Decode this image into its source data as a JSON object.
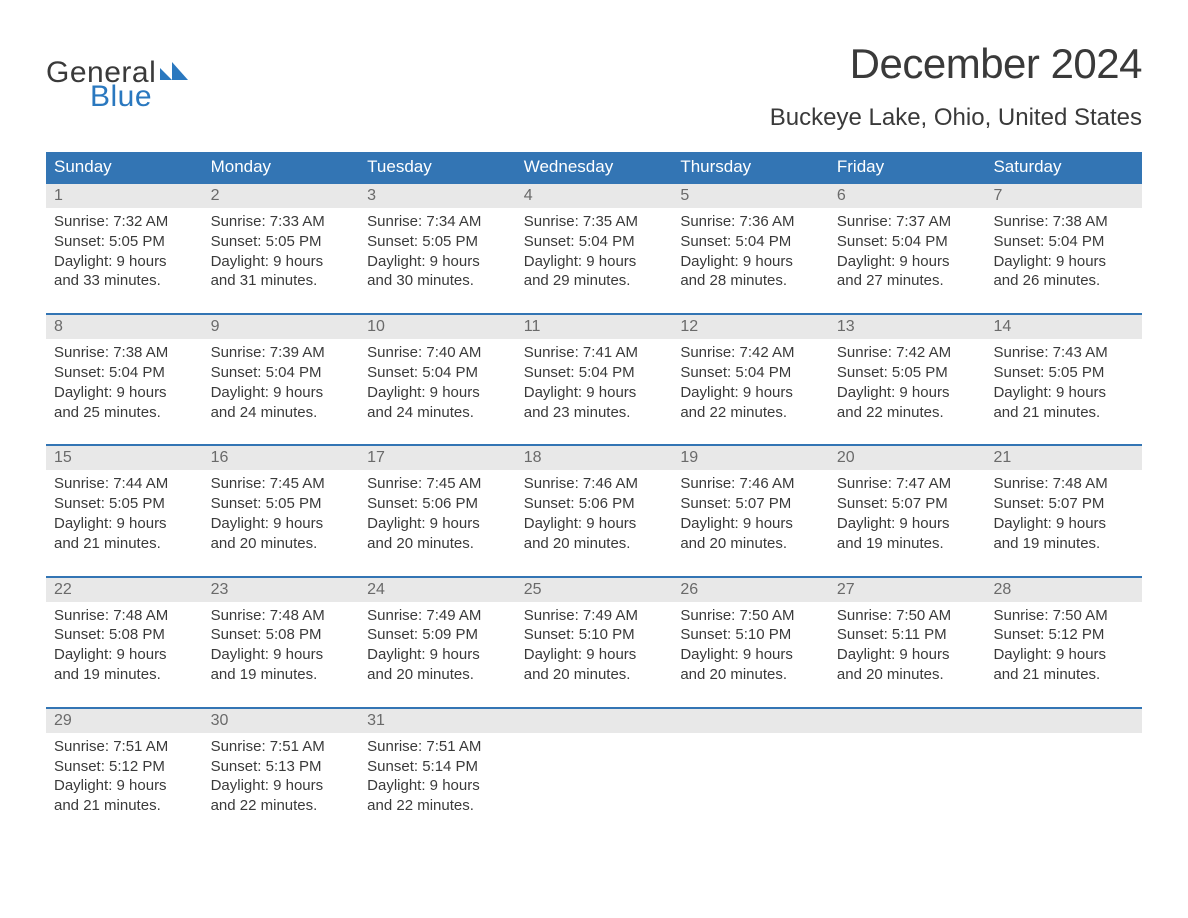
{
  "colors": {
    "brand_blue": "#2a78bf",
    "header_blue": "#3375b4",
    "week_border": "#3375b4",
    "day_num_bg": "#e8e8e8",
    "day_num_text": "#6a6a6a",
    "body_text": "#3a3a3a",
    "background": "#ffffff"
  },
  "logo": {
    "word1": "General",
    "word2": "Blue"
  },
  "title": "December 2024",
  "subtitle": "Buckeye Lake, Ohio, United States",
  "day_names": [
    "Sunday",
    "Monday",
    "Tuesday",
    "Wednesday",
    "Thursday",
    "Friday",
    "Saturday"
  ],
  "weeks": [
    [
      {
        "num": "1",
        "sunrise": "Sunrise: 7:32 AM",
        "sunset": "Sunset: 5:05 PM",
        "day1": "Daylight: 9 hours",
        "day2": "and 33 minutes."
      },
      {
        "num": "2",
        "sunrise": "Sunrise: 7:33 AM",
        "sunset": "Sunset: 5:05 PM",
        "day1": "Daylight: 9 hours",
        "day2": "and 31 minutes."
      },
      {
        "num": "3",
        "sunrise": "Sunrise: 7:34 AM",
        "sunset": "Sunset: 5:05 PM",
        "day1": "Daylight: 9 hours",
        "day2": "and 30 minutes."
      },
      {
        "num": "4",
        "sunrise": "Sunrise: 7:35 AM",
        "sunset": "Sunset: 5:04 PM",
        "day1": "Daylight: 9 hours",
        "day2": "and 29 minutes."
      },
      {
        "num": "5",
        "sunrise": "Sunrise: 7:36 AM",
        "sunset": "Sunset: 5:04 PM",
        "day1": "Daylight: 9 hours",
        "day2": "and 28 minutes."
      },
      {
        "num": "6",
        "sunrise": "Sunrise: 7:37 AM",
        "sunset": "Sunset: 5:04 PM",
        "day1": "Daylight: 9 hours",
        "day2": "and 27 minutes."
      },
      {
        "num": "7",
        "sunrise": "Sunrise: 7:38 AM",
        "sunset": "Sunset: 5:04 PM",
        "day1": "Daylight: 9 hours",
        "day2": "and 26 minutes."
      }
    ],
    [
      {
        "num": "8",
        "sunrise": "Sunrise: 7:38 AM",
        "sunset": "Sunset: 5:04 PM",
        "day1": "Daylight: 9 hours",
        "day2": "and 25 minutes."
      },
      {
        "num": "9",
        "sunrise": "Sunrise: 7:39 AM",
        "sunset": "Sunset: 5:04 PM",
        "day1": "Daylight: 9 hours",
        "day2": "and 24 minutes."
      },
      {
        "num": "10",
        "sunrise": "Sunrise: 7:40 AM",
        "sunset": "Sunset: 5:04 PM",
        "day1": "Daylight: 9 hours",
        "day2": "and 24 minutes."
      },
      {
        "num": "11",
        "sunrise": "Sunrise: 7:41 AM",
        "sunset": "Sunset: 5:04 PM",
        "day1": "Daylight: 9 hours",
        "day2": "and 23 minutes."
      },
      {
        "num": "12",
        "sunrise": "Sunrise: 7:42 AM",
        "sunset": "Sunset: 5:04 PM",
        "day1": "Daylight: 9 hours",
        "day2": "and 22 minutes."
      },
      {
        "num": "13",
        "sunrise": "Sunrise: 7:42 AM",
        "sunset": "Sunset: 5:05 PM",
        "day1": "Daylight: 9 hours",
        "day2": "and 22 minutes."
      },
      {
        "num": "14",
        "sunrise": "Sunrise: 7:43 AM",
        "sunset": "Sunset: 5:05 PM",
        "day1": "Daylight: 9 hours",
        "day2": "and 21 minutes."
      }
    ],
    [
      {
        "num": "15",
        "sunrise": "Sunrise: 7:44 AM",
        "sunset": "Sunset: 5:05 PM",
        "day1": "Daylight: 9 hours",
        "day2": "and 21 minutes."
      },
      {
        "num": "16",
        "sunrise": "Sunrise: 7:45 AM",
        "sunset": "Sunset: 5:05 PM",
        "day1": "Daylight: 9 hours",
        "day2": "and 20 minutes."
      },
      {
        "num": "17",
        "sunrise": "Sunrise: 7:45 AM",
        "sunset": "Sunset: 5:06 PM",
        "day1": "Daylight: 9 hours",
        "day2": "and 20 minutes."
      },
      {
        "num": "18",
        "sunrise": "Sunrise: 7:46 AM",
        "sunset": "Sunset: 5:06 PM",
        "day1": "Daylight: 9 hours",
        "day2": "and 20 minutes."
      },
      {
        "num": "19",
        "sunrise": "Sunrise: 7:46 AM",
        "sunset": "Sunset: 5:07 PM",
        "day1": "Daylight: 9 hours",
        "day2": "and 20 minutes."
      },
      {
        "num": "20",
        "sunrise": "Sunrise: 7:47 AM",
        "sunset": "Sunset: 5:07 PM",
        "day1": "Daylight: 9 hours",
        "day2": "and 19 minutes."
      },
      {
        "num": "21",
        "sunrise": "Sunrise: 7:48 AM",
        "sunset": "Sunset: 5:07 PM",
        "day1": "Daylight: 9 hours",
        "day2": "and 19 minutes."
      }
    ],
    [
      {
        "num": "22",
        "sunrise": "Sunrise: 7:48 AM",
        "sunset": "Sunset: 5:08 PM",
        "day1": "Daylight: 9 hours",
        "day2": "and 19 minutes."
      },
      {
        "num": "23",
        "sunrise": "Sunrise: 7:48 AM",
        "sunset": "Sunset: 5:08 PM",
        "day1": "Daylight: 9 hours",
        "day2": "and 19 minutes."
      },
      {
        "num": "24",
        "sunrise": "Sunrise: 7:49 AM",
        "sunset": "Sunset: 5:09 PM",
        "day1": "Daylight: 9 hours",
        "day2": "and 20 minutes."
      },
      {
        "num": "25",
        "sunrise": "Sunrise: 7:49 AM",
        "sunset": "Sunset: 5:10 PM",
        "day1": "Daylight: 9 hours",
        "day2": "and 20 minutes."
      },
      {
        "num": "26",
        "sunrise": "Sunrise: 7:50 AM",
        "sunset": "Sunset: 5:10 PM",
        "day1": "Daylight: 9 hours",
        "day2": "and 20 minutes."
      },
      {
        "num": "27",
        "sunrise": "Sunrise: 7:50 AM",
        "sunset": "Sunset: 5:11 PM",
        "day1": "Daylight: 9 hours",
        "day2": "and 20 minutes."
      },
      {
        "num": "28",
        "sunrise": "Sunrise: 7:50 AM",
        "sunset": "Sunset: 5:12 PM",
        "day1": "Daylight: 9 hours",
        "day2": "and 21 minutes."
      }
    ],
    [
      {
        "num": "29",
        "sunrise": "Sunrise: 7:51 AM",
        "sunset": "Sunset: 5:12 PM",
        "day1": "Daylight: 9 hours",
        "day2": "and 21 minutes."
      },
      {
        "num": "30",
        "sunrise": "Sunrise: 7:51 AM",
        "sunset": "Sunset: 5:13 PM",
        "day1": "Daylight: 9 hours",
        "day2": "and 22 minutes."
      },
      {
        "num": "31",
        "sunrise": "Sunrise: 7:51 AM",
        "sunset": "Sunset: 5:14 PM",
        "day1": "Daylight: 9 hours",
        "day2": "and 22 minutes."
      },
      {
        "empty": true
      },
      {
        "empty": true
      },
      {
        "empty": true
      },
      {
        "empty": true
      }
    ]
  ]
}
